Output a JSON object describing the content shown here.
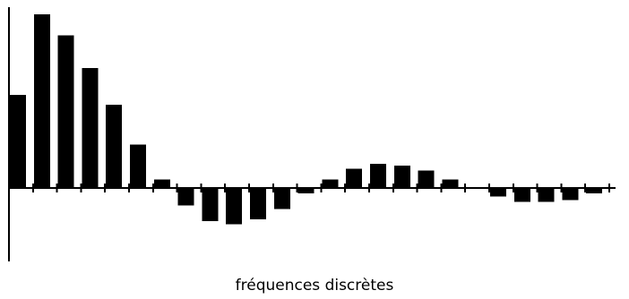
{
  "chart_data": {
    "type": "bar",
    "title": "",
    "xlabel": "fréquences discrètes",
    "ylabel": "",
    "grid": false,
    "legend": "none",
    "ylim": [
      -0.42,
      1.0
    ],
    "x": [
      0,
      1,
      2,
      3,
      4,
      5,
      6,
      7,
      8,
      9,
      10,
      11,
      12,
      13,
      14,
      15,
      16,
      17,
      18,
      19,
      20,
      21,
      22,
      23,
      24,
      25
    ],
    "values": [
      0.535,
      1.0,
      0.88,
      0.69,
      0.48,
      0.25,
      0.05,
      -0.1,
      -0.19,
      -0.21,
      -0.18,
      -0.12,
      -0.03,
      0.05,
      0.11,
      0.14,
      0.13,
      0.1,
      0.05,
      0.0,
      -0.05,
      -0.08,
      -0.08,
      -0.07,
      -0.03,
      0.0
    ],
    "bar_color": "#000000"
  }
}
